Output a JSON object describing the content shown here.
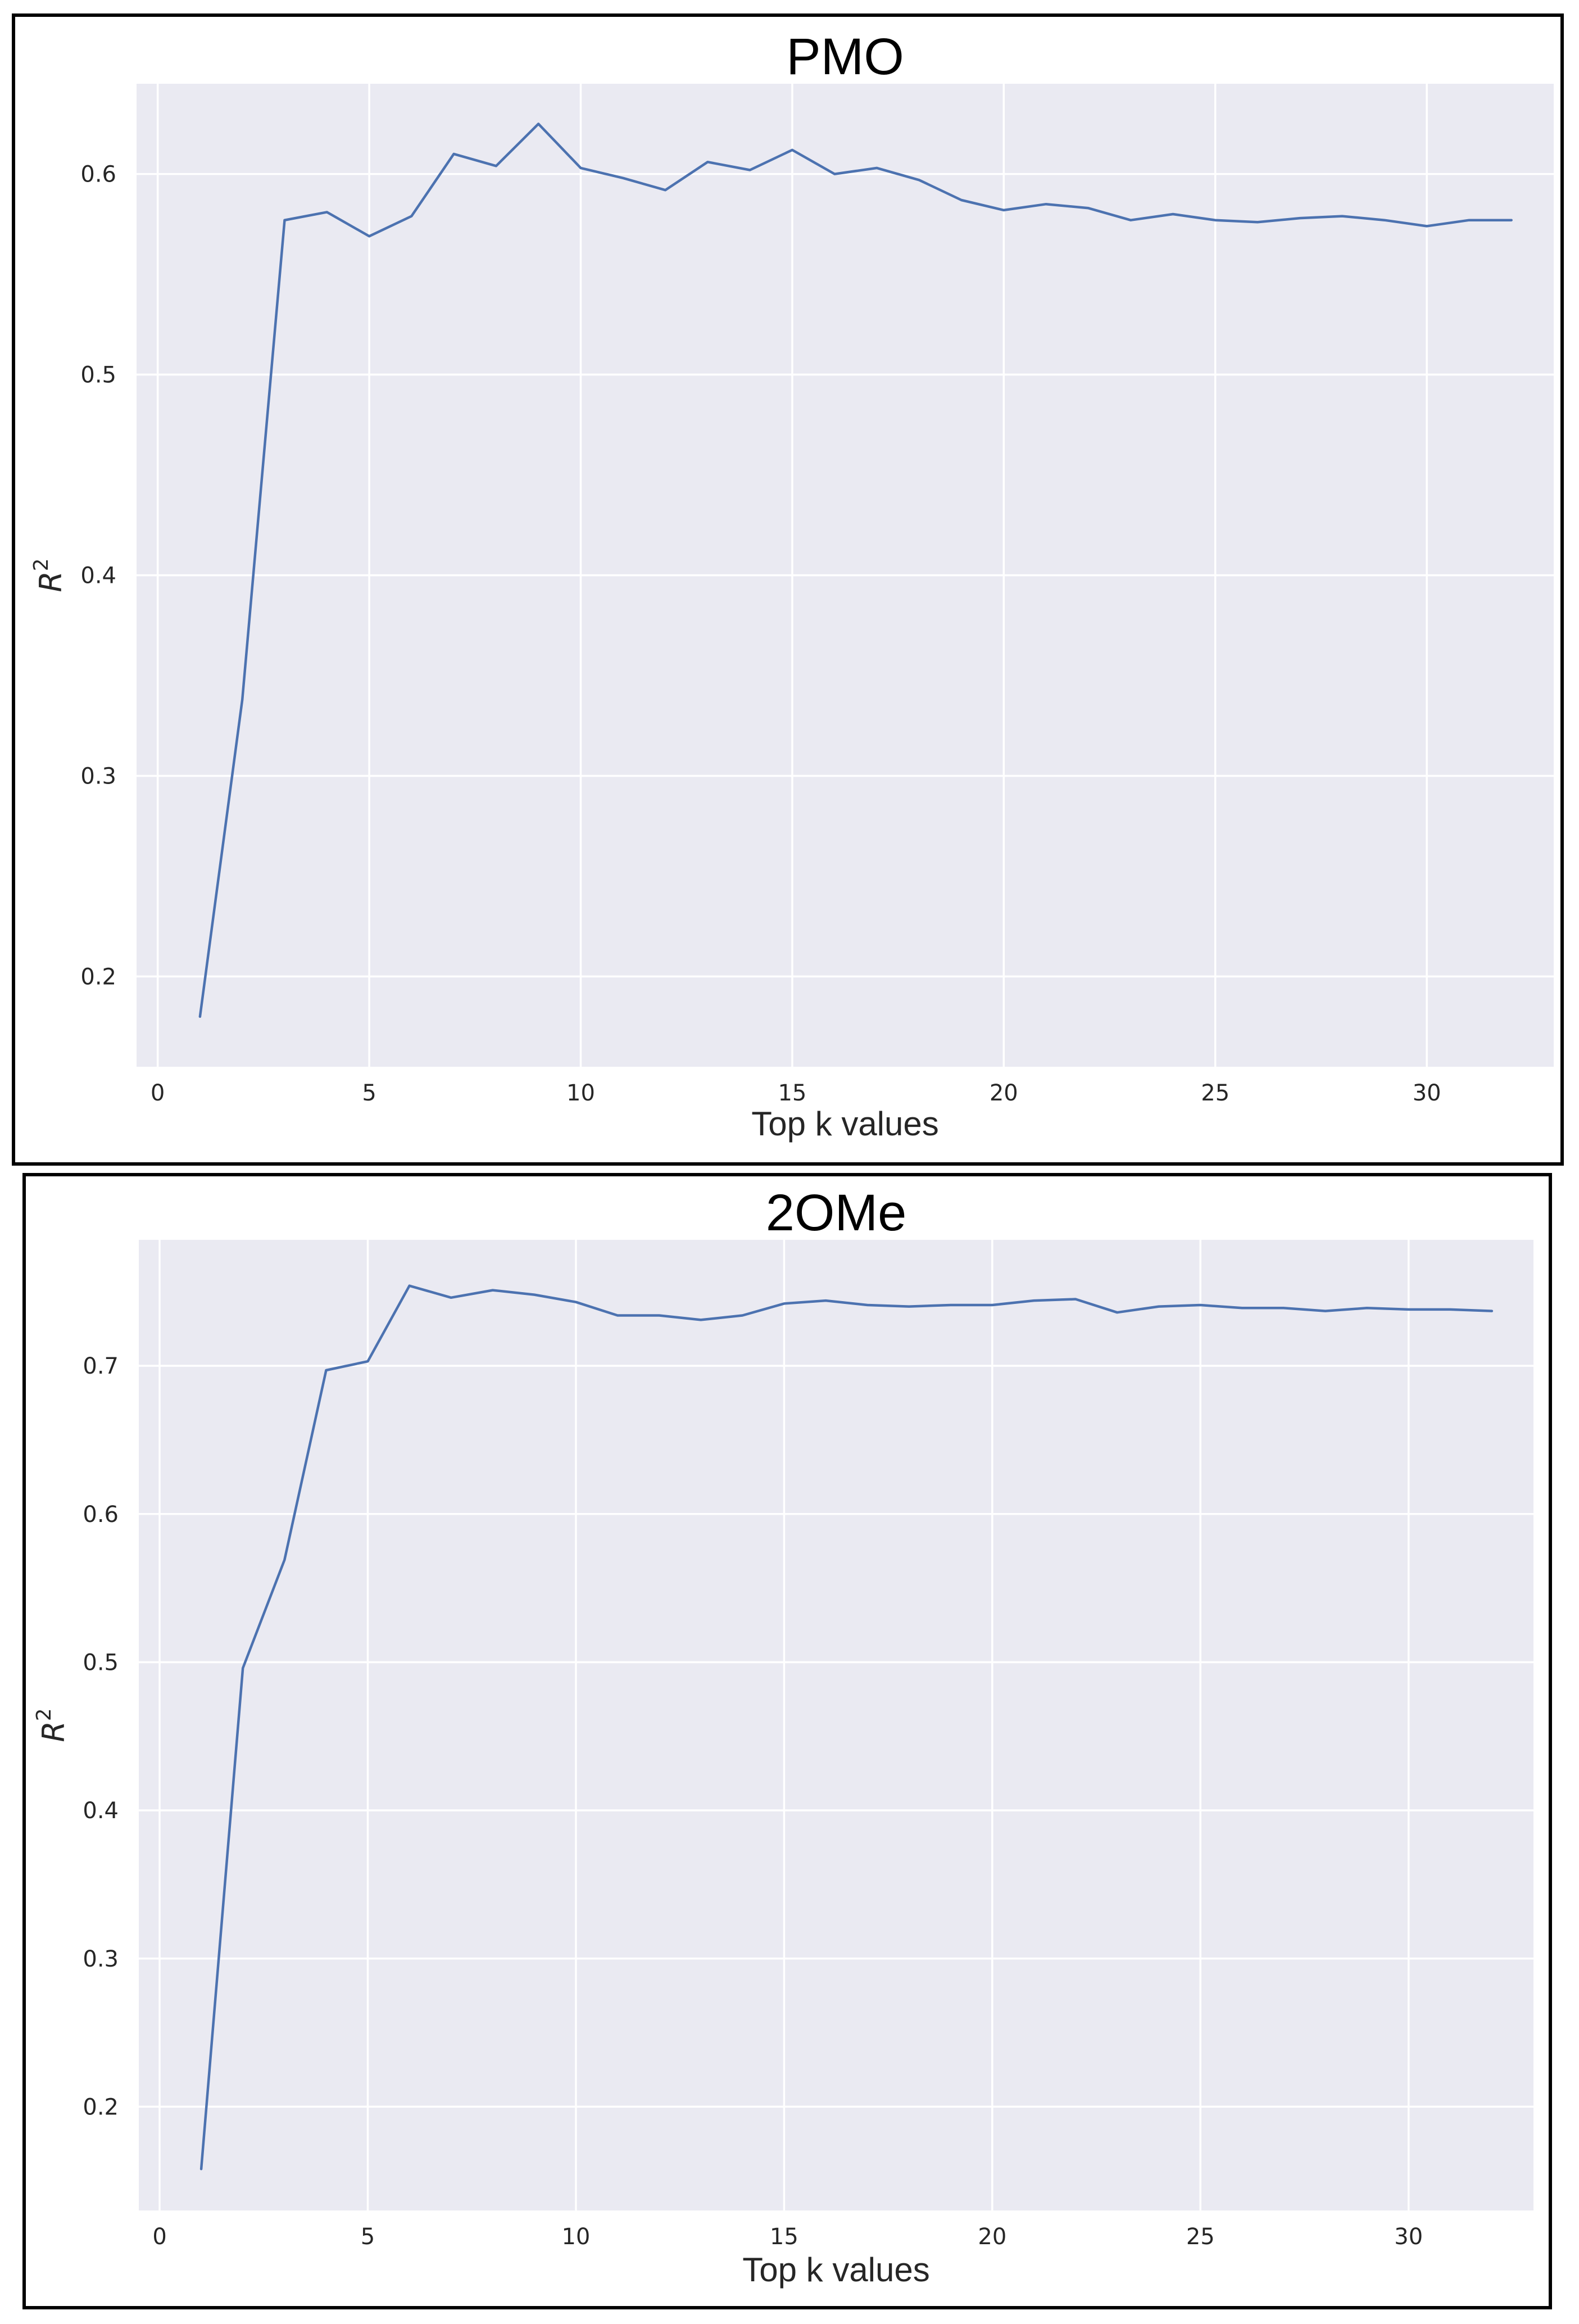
{
  "colors": {
    "background": "#eaeaf2",
    "grid": "#ffffff",
    "series": "#4c72b0",
    "frame": "#000000"
  },
  "chart_data": [
    {
      "type": "line",
      "title": "PMO",
      "xlabel": "Top k values",
      "ylabel": "R",
      "ylabel_superscript": "2",
      "xlim": [
        -0.5,
        33
      ],
      "ylim": [
        0.155,
        0.645
      ],
      "xticks": [
        0,
        5,
        10,
        15,
        20,
        25,
        30
      ],
      "yticks": [
        0.2,
        0.3,
        0.4,
        0.5,
        0.6
      ],
      "grid": true,
      "series": [
        {
          "x": [
            1,
            2,
            3,
            4,
            5,
            6,
            7,
            8,
            9,
            10,
            11,
            12,
            13,
            14,
            15,
            16,
            17,
            18,
            19,
            20,
            21,
            22,
            23,
            24,
            25,
            26,
            27,
            28,
            29,
            30,
            31,
            32
          ],
          "values": [
            0.18,
            0.338,
            0.577,
            0.581,
            0.569,
            0.579,
            0.61,
            0.604,
            0.625,
            0.603,
            0.598,
            0.592,
            0.606,
            0.602,
            0.612,
            0.6,
            0.603,
            0.597,
            0.587,
            0.582,
            0.585,
            0.583,
            0.577,
            0.58,
            0.577,
            0.576,
            0.578,
            0.579,
            0.577,
            0.574,
            0.577,
            0.577
          ]
        }
      ]
    },
    {
      "type": "line",
      "title": "2OMe",
      "xlabel": "Top k values",
      "ylabel": "R",
      "ylabel_superscript": "2",
      "xlim": [
        -0.5,
        33
      ],
      "ylim": [
        0.13,
        0.785
      ],
      "xticks": [
        0,
        5,
        10,
        15,
        20,
        25,
        30
      ],
      "yticks": [
        0.2,
        0.3,
        0.4,
        0.5,
        0.6,
        0.7
      ],
      "grid": true,
      "series": [
        {
          "x": [
            1,
            2,
            3,
            4,
            5,
            6,
            7,
            8,
            9,
            10,
            11,
            12,
            13,
            14,
            15,
            16,
            17,
            18,
            19,
            20,
            21,
            22,
            23,
            24,
            25,
            26,
            27,
            28,
            29,
            30,
            31,
            32
          ],
          "values": [
            0.158,
            0.496,
            0.569,
            0.697,
            0.703,
            0.754,
            0.746,
            0.751,
            0.748,
            0.743,
            0.734,
            0.734,
            0.731,
            0.734,
            0.742,
            0.744,
            0.741,
            0.74,
            0.741,
            0.741,
            0.744,
            0.745,
            0.736,
            0.74,
            0.741,
            0.739,
            0.739,
            0.737,
            0.739,
            0.738,
            0.738,
            0.737
          ]
        }
      ]
    }
  ]
}
